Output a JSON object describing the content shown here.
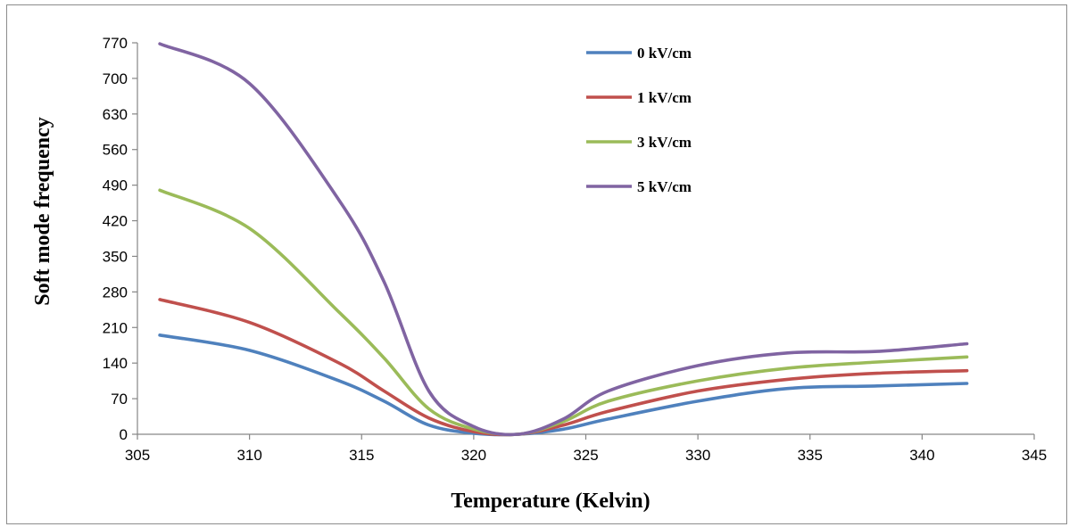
{
  "chart_data": {
    "type": "line",
    "title": "",
    "xlabel": "Temperature (Kelvin)",
    "ylabel": "Soft mode frequency",
    "xlim": [
      305,
      345
    ],
    "ylim": [
      0,
      770
    ],
    "xticks": [
      305,
      310,
      315,
      320,
      325,
      330,
      335,
      340,
      345
    ],
    "yticks": [
      0,
      70,
      140,
      210,
      280,
      350,
      420,
      490,
      560,
      630,
      700,
      770
    ],
    "grid": false,
    "legend_position": "top-right",
    "x": [
      306,
      310,
      314,
      316,
      318,
      320,
      322,
      324,
      326,
      330,
      334,
      338,
      342
    ],
    "series": [
      {
        "name": "0 kV/cm",
        "color": "#4f81bd",
        "values": [
          195,
          165,
          105,
          65,
          18,
          2,
          0,
          10,
          30,
          65,
          90,
          95,
          100
        ]
      },
      {
        "name": "1 kV/cm",
        "color": "#c0504d",
        "values": [
          265,
          220,
          140,
          85,
          32,
          5,
          0,
          18,
          45,
          85,
          108,
          120,
          125
        ]
      },
      {
        "name": "3 kV/cm",
        "color": "#9bbb59",
        "values": [
          480,
          405,
          240,
          150,
          50,
          10,
          0,
          25,
          65,
          105,
          130,
          142,
          152
        ]
      },
      {
        "name": "5 kV/cm",
        "color": "#8064a2",
        "values": [
          768,
          690,
          460,
          300,
          85,
          15,
          0,
          30,
          85,
          135,
          160,
          163,
          178
        ]
      }
    ]
  }
}
